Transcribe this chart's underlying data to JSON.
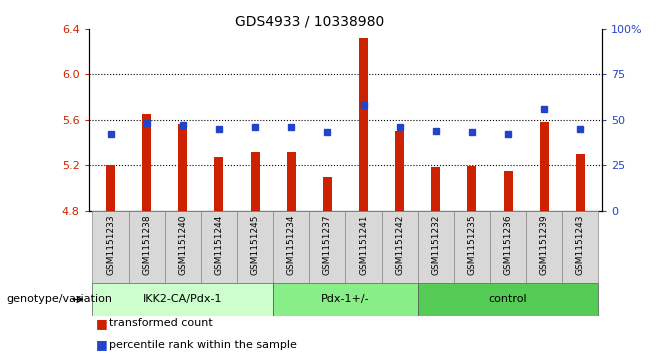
{
  "title": "GDS4933 / 10338980",
  "samples": [
    "GSM1151233",
    "GSM1151238",
    "GSM1151240",
    "GSM1151244",
    "GSM1151245",
    "GSM1151234",
    "GSM1151237",
    "GSM1151241",
    "GSM1151242",
    "GSM1151232",
    "GSM1151235",
    "GSM1151236",
    "GSM1151239",
    "GSM1151243"
  ],
  "red_values": [
    5.2,
    5.65,
    5.56,
    5.27,
    5.32,
    5.32,
    5.1,
    6.32,
    5.5,
    5.18,
    5.19,
    5.15,
    5.58,
    5.3
  ],
  "blue_values_pct": [
    42,
    48,
    47,
    45,
    46,
    46,
    43,
    58,
    46,
    44,
    43,
    42,
    56,
    45
  ],
  "ymin": 4.8,
  "ymax": 6.4,
  "y2min": 0,
  "y2max": 100,
  "yticks": [
    4.8,
    5.2,
    5.6,
    6.0,
    6.4
  ],
  "y2ticks": [
    0,
    25,
    50,
    75,
    100
  ],
  "groups": [
    {
      "label": "IKK2-CA/Pdx-1",
      "start": 0,
      "end": 4,
      "color": "#ccffcc"
    },
    {
      "label": "Pdx-1+/-",
      "start": 5,
      "end": 8,
      "color": "#88ee88"
    },
    {
      "label": "control",
      "start": 9,
      "end": 13,
      "color": "#55cc55"
    }
  ],
  "group_label": "genotype/variation",
  "bar_color": "#cc2200",
  "dot_color": "#2244cc",
  "bar_bottom": 4.8,
  "tick_bg": "#d8d8d8",
  "grid_dotted_at": [
    5.2,
    5.6,
    6.0
  ]
}
